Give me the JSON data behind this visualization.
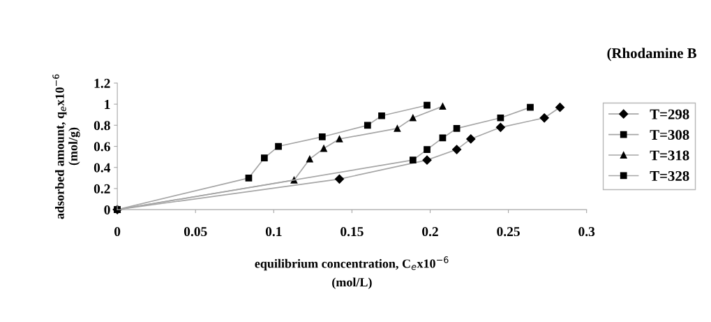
{
  "chart_data": {
    "type": "line",
    "title": "(Rhodamine B",
    "xlabel": "equilibrium concentration, C$_{e}$x10$^{−6}$\n(mol/L)",
    "ylabel": "adsorbed amount, q$_{e}$x10$^{−6}$\n(mol/g)",
    "xlim": [
      0,
      0.3
    ],
    "xticks": [
      0,
      0.05,
      0.1,
      0.15,
      0.2,
      0.25,
      0.3
    ],
    "ylim": [
      0,
      1.2
    ],
    "yticks": [
      0,
      0.2,
      0.4,
      0.6,
      0.8,
      1,
      1.2
    ],
    "grid": false,
    "legend": "right",
    "series": [
      {
        "name": "T=298",
        "color": "#000000",
        "marker": "diamond",
        "x": [
          0,
          0.142,
          0.198,
          0.217,
          0.226,
          0.245,
          0.273,
          0.283
        ],
        "values": [
          0,
          0.29,
          0.47,
          0.57,
          0.67,
          0.78,
          0.87,
          0.97
        ]
      },
      {
        "name": "T=308",
        "color": "#000000",
        "marker": "square",
        "x": [
          0,
          0.084,
          0.094,
          0.103,
          0.131,
          0.16,
          0.169,
          0.198
        ],
        "values": [
          0,
          0.3,
          0.49,
          0.6,
          0.69,
          0.8,
          0.89,
          0.99
        ]
      },
      {
        "name": "T=318",
        "color": "#000000",
        "marker": "triangle",
        "x": [
          0,
          0.113,
          0.123,
          0.132,
          0.142,
          0.179,
          0.189,
          0.208
        ],
        "values": [
          0,
          0.28,
          0.48,
          0.58,
          0.67,
          0.77,
          0.87,
          0.98
        ]
      },
      {
        "name": "T=328",
        "color": "#000000",
        "marker": "square",
        "x": [
          0,
          0.189,
          0.198,
          0.208,
          0.217,
          0.245,
          0.264
        ],
        "values": [
          0,
          0.47,
          0.57,
          0.68,
          0.77,
          0.87,
          0.97
        ]
      }
    ]
  }
}
